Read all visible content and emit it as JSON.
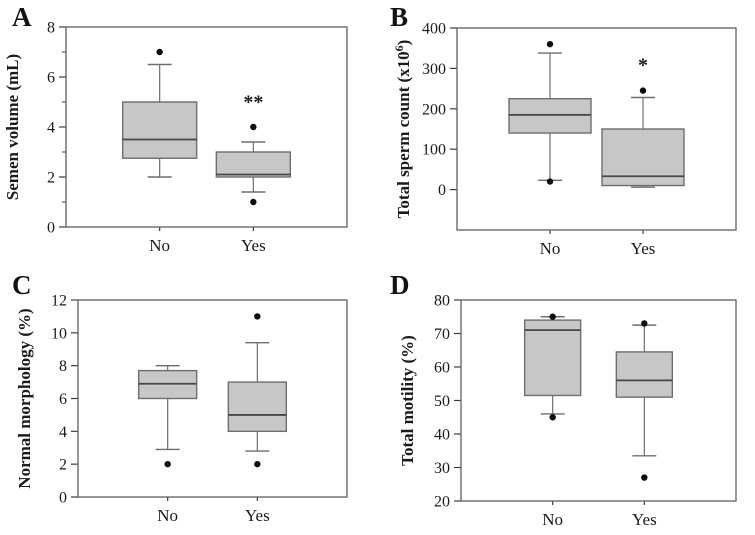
{
  "figure_description": "Four-panel box plot figure comparing semen parameters between No and Yes groups",
  "colors": {
    "background": "#ffffff",
    "box_fill": "#c7c7c7",
    "box_stroke": "#6e6e6e",
    "median": "#474747",
    "whisker": "#6e6e6e",
    "frame": "#5f5f5f",
    "axis": "#3d3d3d",
    "text": "#1b1b1b",
    "outlier": "#0d0d0d"
  },
  "chart_data": [
    {
      "type": "boxplot",
      "panel": "A",
      "ylabel": "Semen volume (mL)",
      "ylabel_sup": null,
      "ylabel_end": null,
      "ylim": [
        0,
        8
      ],
      "yticks": [
        0,
        2,
        4,
        6,
        8
      ],
      "yticks_minor": [
        1,
        3,
        5,
        7
      ],
      "categories": [
        "No",
        "Yes"
      ],
      "significance": {
        "category": "Yes",
        "text": "**",
        "y": 5.1
      },
      "boxes": [
        {
          "category": "No",
          "q1": 2.75,
          "median": 3.5,
          "q3": 5.0,
          "whisker_low": 2.0,
          "whisker_high": 6.5,
          "outliers": [
            7.0
          ]
        },
        {
          "category": "Yes",
          "q1": 2.0,
          "median": 2.1,
          "q3": 3.0,
          "whisker_low": 1.4,
          "whisker_high": 3.4,
          "outliers": [
            4.0,
            1.0
          ]
        }
      ]
    },
    {
      "type": "boxplot",
      "panel": "B",
      "ylabel": "Total sperm count (x10",
      "ylabel_sup": "6",
      "ylabel_end": ")",
      "ylim": [
        -100,
        400
      ],
      "yticks": [
        0,
        100,
        200,
        300,
        400
      ],
      "yticks_minor": [],
      "categories": [
        "No",
        "Yes"
      ],
      "significance": {
        "category": "Yes",
        "text": "*",
        "y": 315
      },
      "boxes": [
        {
          "category": "No",
          "q1": 140,
          "median": 185,
          "q3": 225,
          "whisker_low": 23,
          "whisker_high": 338,
          "outliers": [
            360,
            20
          ]
        },
        {
          "category": "Yes",
          "q1": 10,
          "median": 33,
          "q3": 150,
          "whisker_low": 6,
          "whisker_high": 228,
          "outliers": [
            245
          ]
        }
      ]
    },
    {
      "type": "boxplot",
      "panel": "C",
      "ylabel": "Normal morphology (%)",
      "ylabel_sup": null,
      "ylabel_end": null,
      "ylim": [
        0,
        12
      ],
      "yticks": [
        0,
        2,
        4,
        6,
        8,
        10,
        12
      ],
      "yticks_minor": [],
      "categories": [
        "No",
        "Yes"
      ],
      "significance": null,
      "boxes": [
        {
          "category": "No",
          "q1": 6.0,
          "median": 6.9,
          "q3": 7.7,
          "whisker_low": 2.9,
          "whisker_high": 8.0,
          "outliers": [
            2.0
          ]
        },
        {
          "category": "Yes",
          "q1": 4.0,
          "median": 5.0,
          "q3": 7.0,
          "whisker_low": 2.8,
          "whisker_high": 9.4,
          "outliers": [
            11.0,
            2.0
          ]
        }
      ]
    },
    {
      "type": "boxplot",
      "panel": "D",
      "ylabel": "Total motility (%)",
      "ylabel_sup": null,
      "ylabel_end": null,
      "ylim": [
        20,
        80
      ],
      "yticks": [
        20,
        30,
        40,
        50,
        60,
        70,
        80
      ],
      "yticks_minor": [],
      "categories": [
        "No",
        "Yes"
      ],
      "significance": null,
      "boxes": [
        {
          "category": "No",
          "q1": 51.5,
          "median": 71,
          "q3": 74,
          "whisker_low": 46,
          "whisker_high": 75,
          "outliers": [
            75,
            45
          ]
        },
        {
          "category": "Yes",
          "q1": 51,
          "median": 56,
          "q3": 64.5,
          "whisker_low": 33.5,
          "whisker_high": 72.5,
          "outliers": [
            73,
            27
          ]
        }
      ]
    }
  ]
}
